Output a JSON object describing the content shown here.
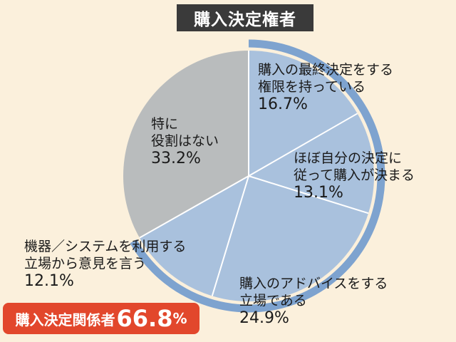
{
  "chart_data": {
    "type": "pie",
    "title": "購入決定権者",
    "slices": [
      {
        "label_lines": [
          "購入の最終決定をする",
          "権限を持っている"
        ],
        "value": 16.7,
        "value_text": "16.7%",
        "color": "#a9c1dd",
        "group": "decision"
      },
      {
        "label_lines": [
          "ほぼ自分の決定に",
          "従って購入が決まる"
        ],
        "value": 13.1,
        "value_text": "13.1%",
        "color": "#a9c1dd",
        "group": "decision"
      },
      {
        "label_lines": [
          "購入のアドバイスをする",
          "立場である"
        ],
        "value": 24.9,
        "value_text": "24.9%",
        "color": "#a9c1dd",
        "group": "decision"
      },
      {
        "label_lines": [
          "機器／システムを利用する",
          "立場から意見を言う"
        ],
        "value": 12.1,
        "value_text": "12.1%",
        "color": "#a9c1dd",
        "group": "decision"
      },
      {
        "label_lines": [
          "特に",
          "役割はない"
        ],
        "value": 33.2,
        "value_text": "33.2%",
        "color": "#b9bcbd",
        "group": "none"
      }
    ],
    "highlight": {
      "label": "購入決定関係者",
      "value": 66.8,
      "value_text": "66.8",
      "unit": "%"
    },
    "colors": {
      "decision": "#a9c1dd",
      "none": "#b9bcbd",
      "ring": "#7ea3cf",
      "divider": "#ffffff",
      "callout": "#e2472c",
      "background": "#fbf0dc"
    }
  }
}
